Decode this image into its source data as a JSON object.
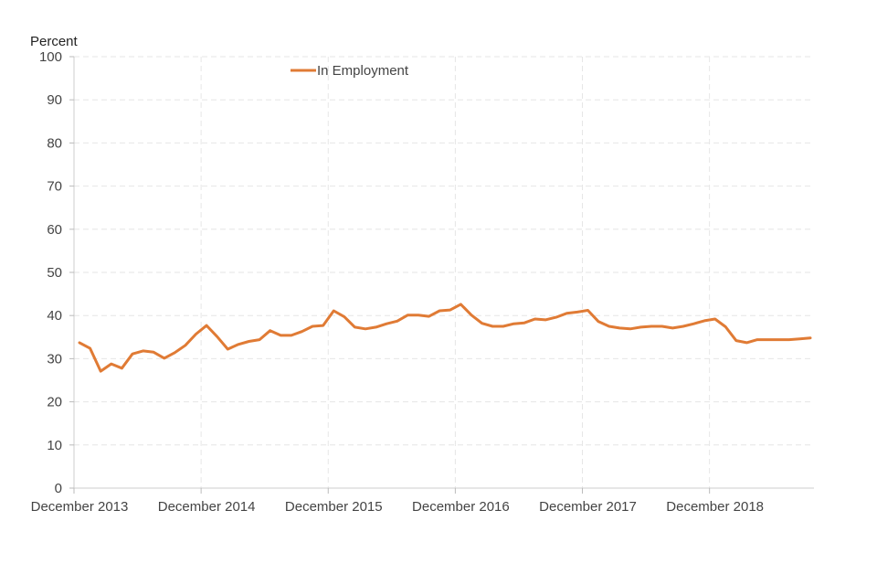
{
  "chart_data": {
    "type": "line",
    "title": "",
    "xlabel": "",
    "ylabel": "Percent",
    "ylim": [
      0,
      100
    ],
    "yticks": [
      0,
      10,
      20,
      30,
      40,
      50,
      60,
      70,
      80,
      90,
      100
    ],
    "xtick_labels": [
      "December 2013",
      "December 2014",
      "December 2015",
      "December 2016",
      "December 2017",
      "December 2018"
    ],
    "grid": true,
    "legend_position": "top-center",
    "series": [
      {
        "name": "In Employment",
        "color": "#e07b35",
        "values": [
          33.7,
          32.4,
          27.1,
          28.8,
          27.8,
          31.1,
          31.8,
          31.5,
          30.1,
          31.4,
          33.1,
          35.7,
          37.7,
          35.1,
          32.2,
          33.3,
          34.0,
          34.4,
          36.5,
          35.4,
          35.4,
          36.3,
          37.5,
          37.7,
          41.1,
          39.7,
          37.3,
          36.9,
          37.3,
          38.1,
          38.7,
          40.1,
          40.1,
          39.8,
          41.1,
          41.3,
          42.6,
          40.1,
          38.2,
          37.5,
          37.5,
          38.1,
          38.3,
          39.2,
          39.0,
          39.6,
          40.5,
          40.8,
          41.2,
          38.6,
          37.5,
          37.1,
          36.9,
          37.3,
          37.5,
          37.5,
          37.1,
          37.5,
          38.1,
          38.8,
          39.2,
          37.4,
          34.2,
          33.7,
          34.4,
          34.4,
          34.4,
          34.4,
          34.6,
          34.8
        ]
      }
    ]
  }
}
